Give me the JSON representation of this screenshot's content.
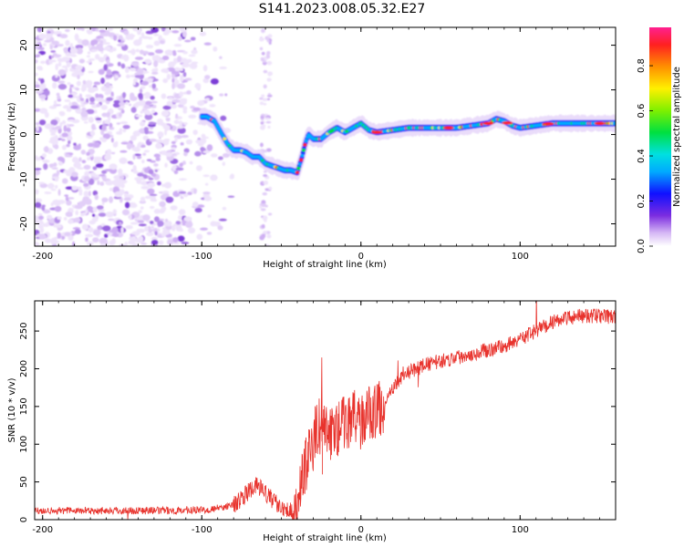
{
  "title": "S141.2023.008.05.32.E27",
  "chart_data": [
    {
      "type": "heatmap",
      "panel": "top",
      "xlabel": "Height of straight line (km)",
      "ylabel": "Frequency (Hz)",
      "xlim": [
        -205,
        160
      ],
      "ylim": [
        -25,
        24
      ],
      "xticks": [
        -200,
        -100,
        0,
        100
      ],
      "yticks": [
        -20,
        -10,
        0,
        10,
        20
      ],
      "colorbar": {
        "label": "Normalized spectral amplitude",
        "range": [
          0,
          1
        ],
        "ticks": [
          "0.0",
          "0.2",
          "0.4",
          "0.6",
          "0.8"
        ]
      },
      "ridge": {
        "name": "frequency track",
        "x": [
          -97,
          -92,
          -88,
          -84,
          -80,
          -76,
          -72,
          -68,
          -64,
          -60,
          -56,
          -52,
          -48,
          -44,
          -40,
          -37,
          -35,
          -33,
          -30,
          -25,
          -20,
          -15,
          -10,
          -5,
          0,
          5,
          10,
          20,
          30,
          40,
          50,
          60,
          70,
          80,
          85,
          90,
          95,
          100,
          110,
          120,
          130,
          140,
          150,
          160
        ],
        "y": [
          4.0,
          3.0,
          0.5,
          -2.0,
          -3.5,
          -3.5,
          -4.0,
          -5.0,
          -5.0,
          -6.5,
          -7.0,
          -7.5,
          -8.0,
          -8.0,
          -8.5,
          -5.0,
          -2.0,
          0.0,
          -1.0,
          -1.0,
          0.5,
          1.5,
          0.5,
          1.5,
          2.5,
          1.0,
          0.5,
          1.0,
          1.5,
          1.5,
          1.5,
          1.5,
          2.0,
          2.5,
          3.5,
          3.0,
          2.0,
          1.5,
          2.0,
          2.5,
          2.5,
          2.5,
          2.5,
          2.5
        ]
      }
    },
    {
      "type": "line",
      "panel": "bottom",
      "xlabel": "Height of straight line (km)",
      "ylabel": "SNR (10 * v/v)",
      "xlim": [
        -205,
        160
      ],
      "ylim": [
        0,
        290
      ],
      "xticks": [
        -200,
        -100,
        0,
        100
      ],
      "yticks": [
        0,
        50,
        100,
        150,
        200,
        250
      ],
      "color": "#e8332d",
      "series": [
        {
          "x": [
            -205,
            -180,
            -160,
            -140,
            -120,
            -100,
            -90,
            -80,
            -75,
            -70,
            -65,
            -60,
            -55,
            -50,
            -45,
            -40,
            -38,
            -35,
            -32,
            -30,
            -28,
            -25,
            -22,
            -20,
            -15,
            -10,
            -5,
            0,
            5,
            10,
            15,
            20,
            25,
            30,
            35,
            40,
            50,
            60,
            70,
            80,
            90,
            100,
            110,
            120,
            130,
            140,
            150,
            160
          ],
          "values": [
            12,
            12,
            12,
            12,
            12,
            13,
            15,
            20,
            28,
            38,
            45,
            35,
            25,
            18,
            12,
            10,
            40,
            70,
            95,
            100,
            120,
            125,
            125,
            110,
            120,
            130,
            135,
            130,
            140,
            145,
            150,
            175,
            185,
            195,
            200,
            205,
            210,
            215,
            220,
            225,
            230,
            240,
            250,
            262,
            268,
            270,
            270,
            268
          ]
        }
      ]
    }
  ]
}
